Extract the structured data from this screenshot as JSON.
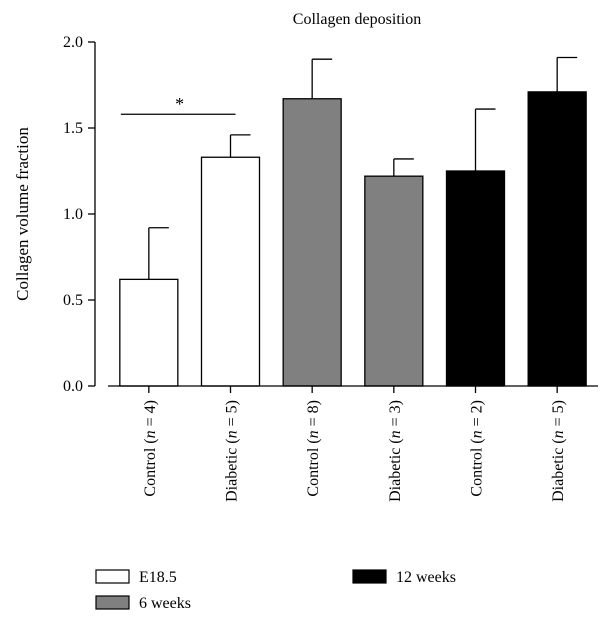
{
  "chart_data": {
    "type": "bar",
    "title": "Collagen deposition",
    "ylabel": "Collagen volume fraction",
    "xlabel": "",
    "ylim": [
      0,
      2.0
    ],
    "yticks": [
      "0.0",
      "0.5",
      "1.0",
      "1.5",
      "2.0"
    ],
    "grid": false,
    "categories": [
      {
        "prefix": "Control (",
        "n": "n",
        "suffix": " = 4)"
      },
      {
        "prefix": "Diabetic (",
        "n": "n",
        "suffix": " = 5)"
      },
      {
        "prefix": "Control (",
        "n": "n",
        "suffix": " = 8)"
      },
      {
        "prefix": "Diabetic (",
        "n": "n",
        "suffix": " = 3)"
      },
      {
        "prefix": "Control (",
        "n": "n",
        "suffix": " = 2)"
      },
      {
        "prefix": "Diabetic (",
        "n": "n",
        "suffix": " = 5)"
      }
    ],
    "values": [
      0.62,
      1.33,
      1.67,
      1.22,
      1.25,
      1.71
    ],
    "errors": [
      0.3,
      0.13,
      0.23,
      0.1,
      0.36,
      0.2
    ],
    "group_of_bar": [
      0,
      0,
      1,
      1,
      2,
      2
    ],
    "groups": [
      {
        "name": "E18.5",
        "color": "#ffffff"
      },
      {
        "name": "6 weeks",
        "color": "#808080"
      },
      {
        "name": "12 weeks",
        "color": "#000000"
      }
    ],
    "significance": {
      "from": 0,
      "to": 1,
      "y": 1.58,
      "label": "*"
    },
    "legend_position": "bottom-left"
  }
}
